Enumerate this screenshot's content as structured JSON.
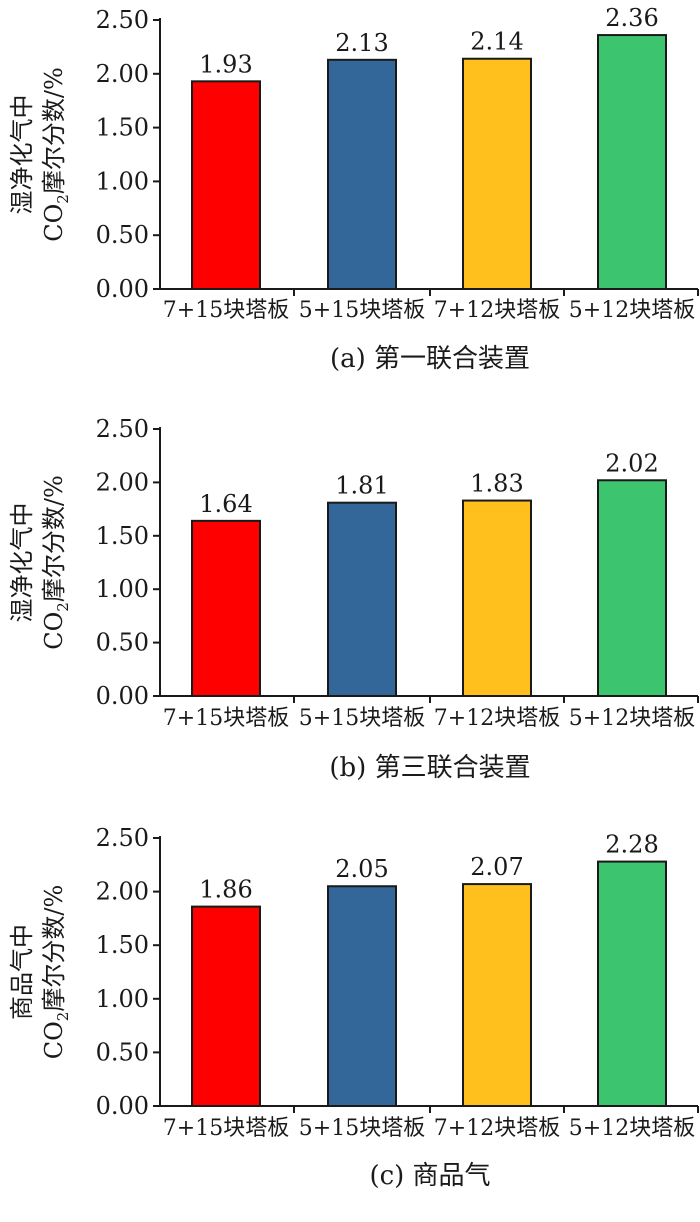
{
  "panels": [
    {
      "ylabel_line1": "湿净化气中",
      "ylabel_line2_prefix": "CO",
      "ylabel_line2_sub": "2",
      "ylabel_line2_suffix": "摩尔分数/%",
      "caption": "(a) 第一联合装置"
    },
    {
      "ylabel_line1": "湿净化气中",
      "ylabel_line2_prefix": "CO",
      "ylabel_line2_sub": "2",
      "ylabel_line2_suffix": "摩尔分数/%",
      "caption": "(b) 第三联合装置"
    },
    {
      "ylabel_line1": "商品气中",
      "ylabel_line2_prefix": "CO",
      "ylabel_line2_sub": "2",
      "ylabel_line2_suffix": "摩尔分数/%",
      "caption": "(c) 商品气"
    }
  ],
  "chart_data": [
    {
      "type": "bar",
      "title": "",
      "caption": "(a) 第一联合装置",
      "categories": [
        "7+15块塔板",
        "5+15块塔板",
        "7+12块塔板",
        "5+12块塔板"
      ],
      "values": [
        1.93,
        2.13,
        2.14,
        2.36
      ],
      "value_labels": [
        "1.93",
        "2.13",
        "2.14",
        "2.36"
      ],
      "colors": [
        "#ff0000",
        "#336699",
        "#ffc01e",
        "#3cc46f"
      ],
      "ylabel": "湿净化气中CO2摩尔分数/%",
      "ylim": [
        0,
        2.5
      ],
      "yticks": [
        "0.00",
        "0.50",
        "1.00",
        "1.50",
        "2.00",
        "2.50"
      ],
      "grid": false,
      "legend": "none"
    },
    {
      "type": "bar",
      "title": "",
      "caption": "(b) 第三联合装置",
      "categories": [
        "7+15块塔板",
        "5+15块塔板",
        "7+12块塔板",
        "5+12块塔板"
      ],
      "values": [
        1.64,
        1.81,
        1.83,
        2.02
      ],
      "value_labels": [
        "1.64",
        "1.81",
        "1.83",
        "2.02"
      ],
      "colors": [
        "#ff0000",
        "#336699",
        "#ffc01e",
        "#3cc46f"
      ],
      "ylabel": "湿净化气中CO2摩尔分数/%",
      "ylim": [
        0,
        2.5
      ],
      "yticks": [
        "0.00",
        "0.50",
        "1.00",
        "1.50",
        "2.00",
        "2.50"
      ],
      "grid": false,
      "legend": "none"
    },
    {
      "type": "bar",
      "title": "",
      "caption": "(c) 商品气",
      "categories": [
        "7+15块塔板",
        "5+15块塔板",
        "7+12块塔板",
        "5+12块塔板"
      ],
      "values": [
        1.86,
        2.05,
        2.07,
        2.28
      ],
      "value_labels": [
        "1.86",
        "2.05",
        "2.07",
        "2.28"
      ],
      "colors": [
        "#ff0000",
        "#336699",
        "#ffc01e",
        "#3cc46f"
      ],
      "ylabel": "商品气中CO2摩尔分数/%",
      "ylim": [
        0,
        2.5
      ],
      "yticks": [
        "0.00",
        "0.50",
        "1.00",
        "1.50",
        "2.00",
        "2.50"
      ],
      "grid": false,
      "legend": "none"
    }
  ]
}
